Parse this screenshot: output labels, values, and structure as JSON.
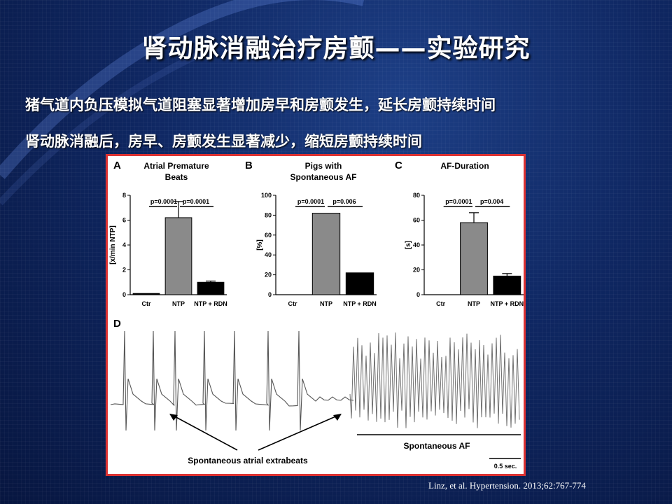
{
  "slide": {
    "title": "肾动脉消融治疗房颤——实验研究",
    "bullets": [
      "猪气道内负压模拟气道阻塞显著增加房早和房颤发生，延长房颤持续时间",
      "肾动脉消融后，房早、房颤发生显著减少，缩短房颤持续时间"
    ],
    "citation": "Linz, et al. Hypertension. 2013;62:767-774"
  },
  "colors": {
    "frame": "#dd3333",
    "bar_gray": "#8a8a8a",
    "bar_black": "#000000"
  },
  "chart_data": [
    {
      "type": "bar",
      "panel": "A",
      "title": "Atrial Premature Beats",
      "ylabel": "[x/min NTP]",
      "categories": [
        "Ctr",
        "NTP",
        "NTP + RDN"
      ],
      "values": [
        0.1,
        6.2,
        1.0
      ],
      "errors": [
        0.0,
        1.3,
        0.1
      ],
      "ylim": [
        0,
        8
      ],
      "yticks": [
        "0",
        "2",
        "4",
        "6",
        "8"
      ],
      "annotations": [
        "p=0.0001",
        "p=0.0001"
      ]
    },
    {
      "type": "bar",
      "panel": "B",
      "title": "Pigs with Spontaneous AF",
      "ylabel": "[%]",
      "categories": [
        "Ctr",
        "NTP",
        "NTP + RDN"
      ],
      "values": [
        0,
        82,
        22
      ],
      "errors": [
        0,
        0,
        0
      ],
      "ylim": [
        0,
        100
      ],
      "yticks": [
        "0",
        "20",
        "40",
        "60",
        "80",
        "100"
      ],
      "annotations": [
        "p=0.0001",
        "p=0.006"
      ]
    },
    {
      "type": "bar",
      "panel": "C",
      "title": "AF-Duration",
      "ylabel": "[s]",
      "categories": [
        "Ctr",
        "NTP",
        "NTP + RDN"
      ],
      "values": [
        0,
        58,
        15
      ],
      "errors": [
        0,
        8,
        2
      ],
      "ylim": [
        0,
        80
      ],
      "yticks": [
        "0",
        "20",
        "40",
        "60",
        "80"
      ],
      "annotations": [
        "p=0.0001",
        "p=0.004"
      ]
    }
  ],
  "trace": {
    "panel": "D",
    "label_extrabeats": "Spontaneous atrial extrabeats",
    "label_af": "Spontaneous AF",
    "scale_label": "0.5 sec."
  }
}
